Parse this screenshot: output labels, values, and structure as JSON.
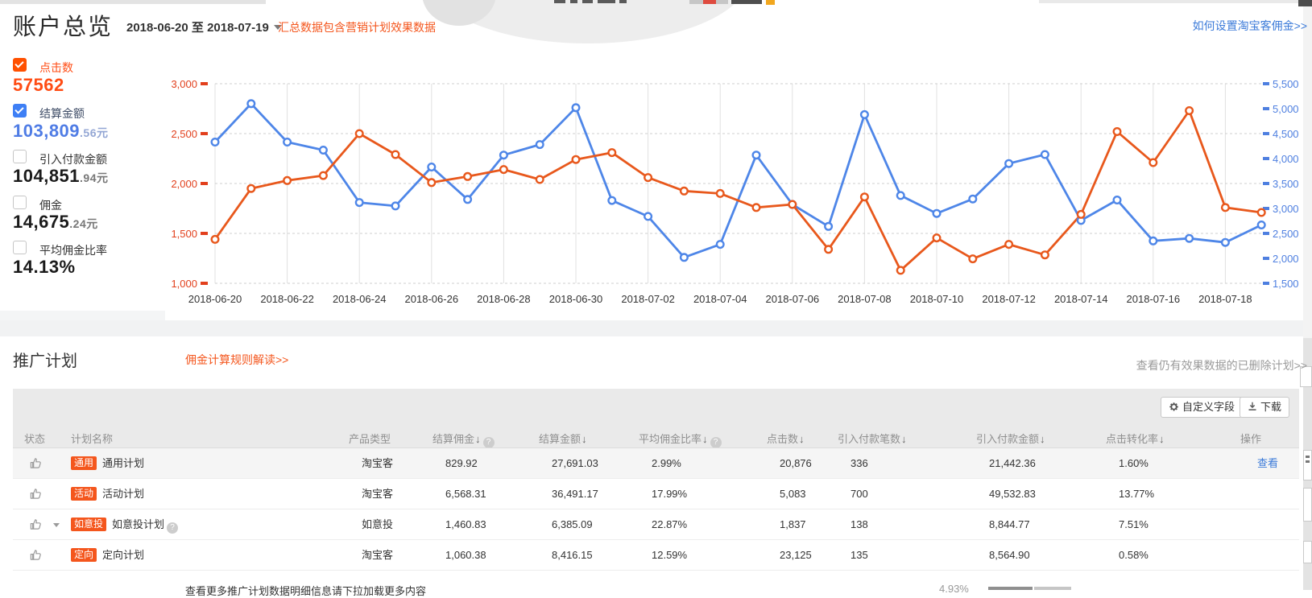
{
  "colors": {
    "accent_orange": "#f4561d",
    "metric_orange": "#ff4c14",
    "metric_blue": "#4f7ce5",
    "series_orange": "#e8581c",
    "series_blue": "#4e86e8",
    "left_axis": "#e2401d",
    "right_axis": "#4e7fe0",
    "link_blue": "#3c7bd9"
  },
  "page": {
    "title": "账户总览",
    "date_range": "2018-06-20 至 2018-07-19",
    "summary_note": "汇总数据包含营销计划效果数据",
    "help_link": "如何设置淘宝客佣金>>"
  },
  "metrics": [
    {
      "label": "点击数",
      "value": "57562",
      "decimals": "",
      "checked": true
    },
    {
      "label": "结算金额",
      "value": "103,809",
      "decimals": ".56元",
      "checked": true
    },
    {
      "label": "引入付款金额",
      "value": "104,851",
      "decimals": ".94元",
      "checked": false
    },
    {
      "label": "佣金",
      "value": "14,675",
      "decimals": ".24元",
      "checked": false
    },
    {
      "label": "平均佣金比率",
      "value": "14.13%",
      "decimals": "",
      "checked": false
    }
  ],
  "chart_data": {
    "type": "line",
    "x": [
      "2018-06-20",
      "2018-06-21",
      "2018-06-22",
      "2018-06-23",
      "2018-06-24",
      "2018-06-25",
      "2018-06-26",
      "2018-06-27",
      "2018-06-28",
      "2018-06-29",
      "2018-06-30",
      "2018-07-01",
      "2018-07-02",
      "2018-07-03",
      "2018-07-04",
      "2018-07-05",
      "2018-07-06",
      "2018-07-07",
      "2018-07-08",
      "2018-07-09",
      "2018-07-10",
      "2018-07-11",
      "2018-07-12",
      "2018-07-13",
      "2018-07-14",
      "2018-07-15",
      "2018-07-16",
      "2018-07-17",
      "2018-07-18",
      "2018-07-19"
    ],
    "x_tick_every": 2,
    "series": [
      {
        "name": "结算金额",
        "axis": "right",
        "color": "#4e86e8",
        "values": [
          4330,
          5100,
          4330,
          4170,
          3120,
          3050,
          3830,
          3180,
          4070,
          4280,
          5020,
          3160,
          2840,
          2020,
          2280,
          4070,
          3080,
          2640,
          4880,
          3260,
          2900,
          3190,
          3900,
          4080,
          2760,
          3170,
          2350,
          2400,
          2320,
          2670
        ]
      },
      {
        "name": "点击数",
        "axis": "left",
        "color": "#e8581c",
        "values": [
          1440,
          1950,
          2030,
          2080,
          2500,
          2290,
          2010,
          2070,
          2140,
          2040,
          2240,
          2310,
          2060,
          1925,
          1900,
          1760,
          1790,
          1340,
          1865,
          1130,
          1455,
          1245,
          1390,
          1285,
          1690,
          2520,
          2210,
          2730,
          1760,
          1710
        ]
      }
    ],
    "left_axis": {
      "min": 1000,
      "max": 3000,
      "step": 500,
      "color": "#e2401d"
    },
    "right_axis": {
      "min": 1500,
      "max": 5500,
      "step": 500,
      "color": "#4e7fe0"
    },
    "grid": {
      "vertical": "solid",
      "horizontal": "dashed"
    }
  },
  "plans": {
    "title": "推广计划",
    "rules_link": "佣金计算规则解读>>",
    "deleted_link": "查看仍有效果数据的已删除计划>>",
    "customize_button": "自定义字段",
    "download_button": "下载",
    "columns": [
      "状态",
      "计划名称",
      "产品类型",
      "结算佣金",
      "结算金额",
      "平均佣金比率",
      "点击数",
      "引入付款笔数",
      "引入付款金额",
      "点击转化率",
      "操作"
    ],
    "rows": [
      {
        "badge": "通用",
        "name": "通用计划",
        "type": "淘宝客",
        "commission": "829.92",
        "amount": "27,691.03",
        "rate": "2.99%",
        "clicks": "20,876",
        "orders": "336",
        "payment": "21,442.36",
        "cvr": "1.60%",
        "action": "查看"
      },
      {
        "badge": "活动",
        "name": "活动计划",
        "type": "淘宝客",
        "commission": "6,568.31",
        "amount": "36,491.17",
        "rate": "17.99%",
        "clicks": "5,083",
        "orders": "700",
        "payment": "49,532.83",
        "cvr": "13.77%",
        "action": ""
      },
      {
        "badge": "如意投",
        "name": "如意投计划",
        "type": "如意投",
        "commission": "1,460.83",
        "amount": "6,385.09",
        "rate": "22.87%",
        "clicks": "1,837",
        "orders": "138",
        "payment": "8,844.77",
        "cvr": "7.51%",
        "action": ""
      },
      {
        "badge": "定向",
        "name": "定向计划",
        "type": "淘宝客",
        "commission": "1,060.38",
        "amount": "8,416.15",
        "rate": "12.59%",
        "clicks": "23,125",
        "orders": "135",
        "payment": "8,564.90",
        "cvr": "0.58%",
        "action": ""
      }
    ],
    "partial_row": {
      "name": "查看更多推广计划数据明细信息请下拉加载更多内容",
      "cvr": "4.93%"
    }
  }
}
